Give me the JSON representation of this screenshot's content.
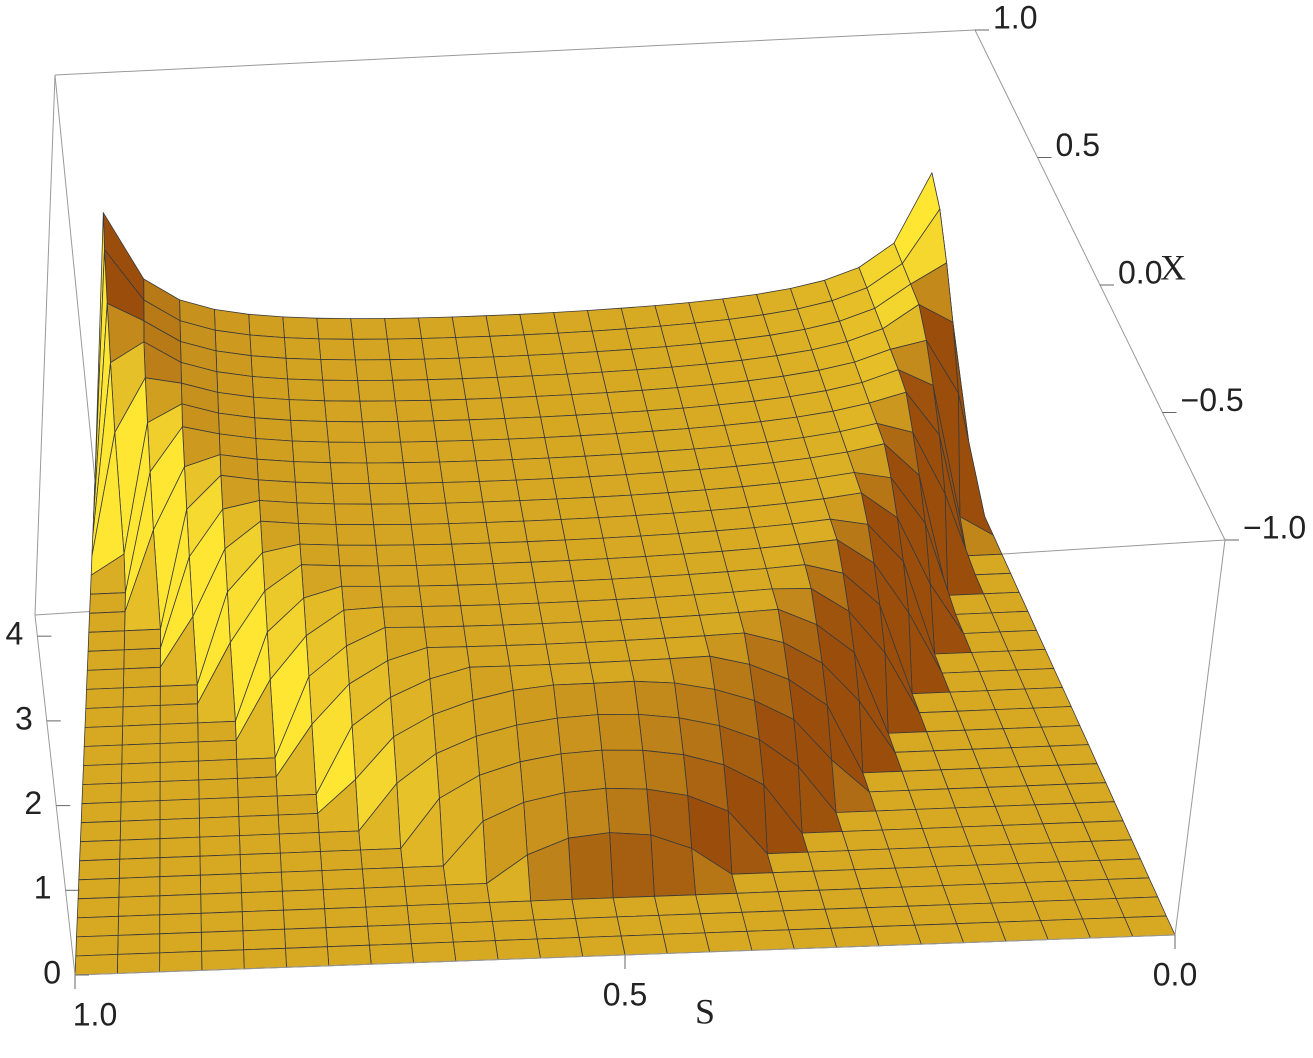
{
  "chart_data": {
    "type": "surface",
    "xlabel": "S",
    "ylabel": "X",
    "xlim": [
      1,
      0
    ],
    "xticks": [
      {
        "value": 1,
        "label": "1.0"
      },
      0.5,
      {
        "value": 0,
        "label": "0.0"
      }
    ],
    "ylim": [
      -1,
      1
    ],
    "yticks": [
      {
        "value": -1,
        "label": "−1.0"
      },
      {
        "value": -0.5,
        "label": "−0.5"
      },
      {
        "value": 0,
        "label": "0.0"
      },
      0.5,
      {
        "value": 1,
        "label": "1.0"
      }
    ],
    "zlim": [
      0,
      4.25
    ],
    "zticks": [
      0,
      1,
      2,
      3,
      4
    ],
    "color": "#f7a21b"
  }
}
